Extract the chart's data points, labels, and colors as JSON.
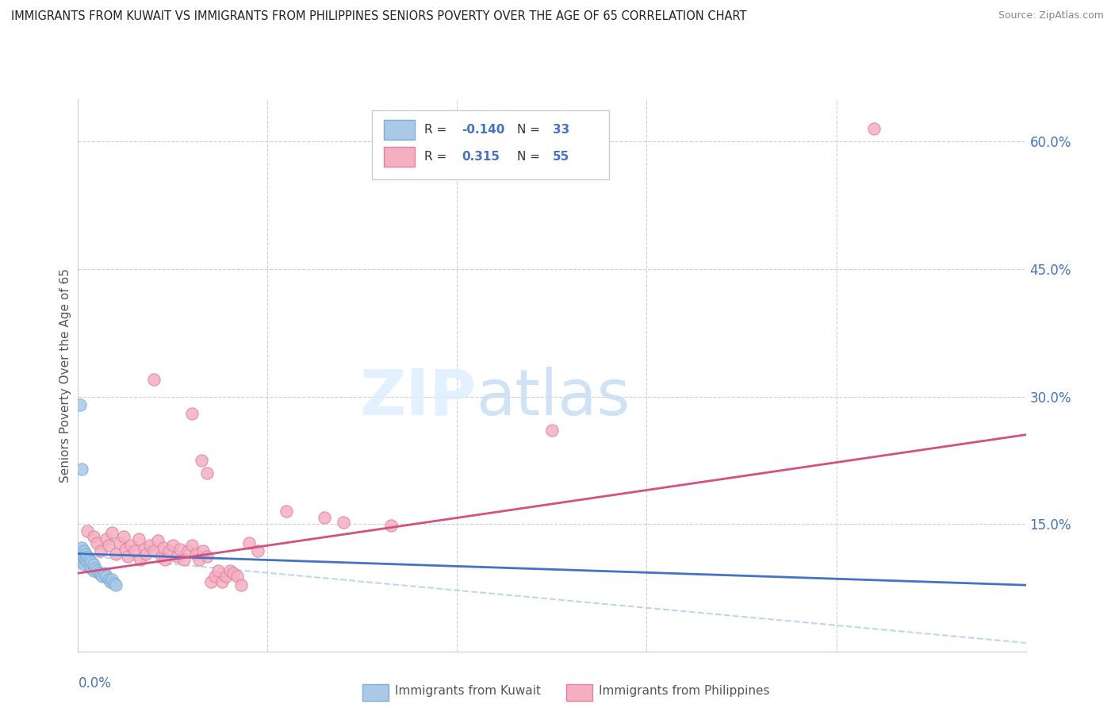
{
  "title": "IMMIGRANTS FROM KUWAIT VS IMMIGRANTS FROM PHILIPPINES SENIORS POVERTY OVER THE AGE OF 65 CORRELATION CHART",
  "source": "Source: ZipAtlas.com",
  "ylabel": "Seniors Poverty Over the Age of 65",
  "y_ticks": [
    0.0,
    0.15,
    0.3,
    0.45,
    0.6
  ],
  "y_tick_labels": [
    "",
    "15.0%",
    "30.0%",
    "45.0%",
    "60.0%"
  ],
  "x_lim": [
    0.0,
    0.5
  ],
  "y_lim": [
    0.0,
    0.65
  ],
  "kuwait_color": "#aac8e8",
  "kuwait_edge": "#7aafd4",
  "philippines_color": "#f4afc0",
  "philippines_edge": "#e080a0",
  "kuwait_line_color": "#4472c4",
  "philippines_line_color": "#d45080",
  "kuwait_dash_color": "#aaccee",
  "kuwait_scatter": [
    [
      0.001,
      0.105
    ],
    [
      0.001,
      0.112
    ],
    [
      0.001,
      0.118
    ],
    [
      0.002,
      0.108
    ],
    [
      0.002,
      0.115
    ],
    [
      0.002,
      0.122
    ],
    [
      0.003,
      0.102
    ],
    [
      0.003,
      0.11
    ],
    [
      0.003,
      0.118
    ],
    [
      0.004,
      0.108
    ],
    [
      0.004,
      0.115
    ],
    [
      0.005,
      0.105
    ],
    [
      0.005,
      0.112
    ],
    [
      0.006,
      0.1
    ],
    [
      0.006,
      0.108
    ],
    [
      0.007,
      0.098
    ],
    [
      0.007,
      0.105
    ],
    [
      0.008,
      0.095
    ],
    [
      0.008,
      0.102
    ],
    [
      0.009,
      0.098
    ],
    [
      0.01,
      0.095
    ],
    [
      0.011,
      0.092
    ],
    [
      0.012,
      0.09
    ],
    [
      0.013,
      0.088
    ],
    [
      0.014,
      0.092
    ],
    [
      0.015,
      0.088
    ],
    [
      0.016,
      0.085
    ],
    [
      0.017,
      0.082
    ],
    [
      0.018,
      0.085
    ],
    [
      0.019,
      0.08
    ],
    [
      0.02,
      0.078
    ],
    [
      0.001,
      0.29
    ],
    [
      0.002,
      0.215
    ]
  ],
  "philippines_scatter": [
    [
      0.005,
      0.142
    ],
    [
      0.008,
      0.135
    ],
    [
      0.01,
      0.128
    ],
    [
      0.012,
      0.118
    ],
    [
      0.015,
      0.132
    ],
    [
      0.016,
      0.125
    ],
    [
      0.018,
      0.14
    ],
    [
      0.02,
      0.115
    ],
    [
      0.022,
      0.128
    ],
    [
      0.024,
      0.135
    ],
    [
      0.025,
      0.12
    ],
    [
      0.026,
      0.112
    ],
    [
      0.028,
      0.125
    ],
    [
      0.03,
      0.118
    ],
    [
      0.032,
      0.132
    ],
    [
      0.033,
      0.108
    ],
    [
      0.035,
      0.12
    ],
    [
      0.036,
      0.115
    ],
    [
      0.038,
      0.125
    ],
    [
      0.04,
      0.118
    ],
    [
      0.042,
      0.13
    ],
    [
      0.044,
      0.112
    ],
    [
      0.045,
      0.122
    ],
    [
      0.046,
      0.108
    ],
    [
      0.048,
      0.118
    ],
    [
      0.05,
      0.125
    ],
    [
      0.052,
      0.112
    ],
    [
      0.054,
      0.12
    ],
    [
      0.056,
      0.108
    ],
    [
      0.058,
      0.118
    ],
    [
      0.06,
      0.125
    ],
    [
      0.062,
      0.115
    ],
    [
      0.064,
      0.108
    ],
    [
      0.066,
      0.118
    ],
    [
      0.068,
      0.112
    ],
    [
      0.07,
      0.082
    ],
    [
      0.072,
      0.088
    ],
    [
      0.074,
      0.095
    ],
    [
      0.076,
      0.082
    ],
    [
      0.078,
      0.088
    ],
    [
      0.08,
      0.095
    ],
    [
      0.082,
      0.092
    ],
    [
      0.084,
      0.088
    ],
    [
      0.086,
      0.078
    ],
    [
      0.04,
      0.32
    ],
    [
      0.06,
      0.28
    ],
    [
      0.065,
      0.225
    ],
    [
      0.068,
      0.21
    ],
    [
      0.11,
      0.165
    ],
    [
      0.13,
      0.158
    ],
    [
      0.14,
      0.152
    ],
    [
      0.165,
      0.148
    ],
    [
      0.25,
      0.26
    ],
    [
      0.42,
      0.615
    ],
    [
      0.09,
      0.128
    ],
    [
      0.095,
      0.118
    ]
  ],
  "kuwait_regression": [
    0.0,
    0.5,
    0.115,
    0.078
  ],
  "philippines_regression": [
    0.0,
    0.5,
    0.092,
    0.255
  ],
  "kuwait_dash_regression": [
    0.005,
    0.5,
    0.112,
    0.01
  ]
}
